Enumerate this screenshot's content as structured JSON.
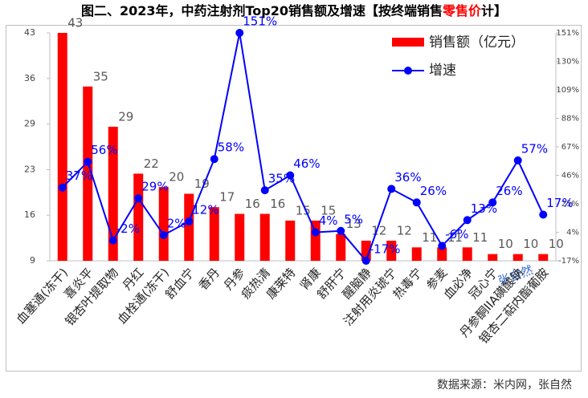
{
  "chart_data": {
    "type": "bar-line",
    "title": [
      "图二、2023年，中药注射剂Top20销售额及增速【按终端销售",
      "零售价",
      "计】"
    ],
    "categories": [
      "血塞通(冻干)",
      "喜炎平",
      "银杏叶提取物",
      "丹红",
      "血栓通(冻干)",
      "舒血宁",
      "香丹",
      "丹参",
      "痰热清",
      "康莱特",
      "肾康",
      "舒肝宁",
      "醒脑静",
      "注射用炎琥宁",
      "热毒宁",
      "参麦",
      "血必净",
      "冠心宁",
      "丹参酮IIA磺酸钠",
      "银杏二萜内酯葡胺"
    ],
    "series": [
      {
        "name": "销售额（亿元）",
        "color": "#ff0000",
        "values": [
          43,
          35,
          29,
          22,
          20,
          19,
          17,
          16,
          16,
          15,
          15,
          13,
          12,
          12,
          11,
          11,
          11,
          10,
          10,
          10
        ]
      },
      {
        "name": "增速",
        "color": "#0000ff",
        "axis": "y2",
        "values": [
          37,
          56,
          -2,
          29,
          2,
          12,
          58,
          151,
          35,
          46,
          4,
          5,
          -17,
          36,
          26,
          -6,
          13,
          26,
          57,
          17
        ],
        "value_labels": [
          "37%",
          "56%",
          "-2%",
          "29%",
          "2%",
          "12%",
          "58%",
          "151%",
          "35%",
          "46%",
          "4%",
          "5%",
          "-17%",
          "36%",
          "26%",
          "-6%",
          "13%",
          "26%",
          "57%",
          "17%"
        ]
      }
    ],
    "ylim": [
      9,
      43
    ],
    "yticks": [
      9,
      {
        "value": 15.8,
        "label": "16"
      },
      {
        "value": 22.6,
        "label": "23"
      },
      {
        "value": 29.4,
        "label": "29"
      },
      {
        "value": 36.2,
        "label": "36"
      },
      43
    ],
    "y2lim": [
      -17,
      151
    ],
    "y2ticks": [
      {
        "value": -17,
        "label": "-17%"
      },
      {
        "value": 4,
        "label": "4%"
      },
      {
        "value": 25,
        "label": "25%"
      },
      {
        "value": 46,
        "label": "46%"
      },
      {
        "value": 67,
        "label": "67%"
      },
      {
        "value": 88,
        "label": "88%"
      },
      {
        "value": 109,
        "label": "109%"
      },
      {
        "value": 130,
        "label": "130%"
      },
      {
        "value": 151,
        "label": "151%"
      }
    ],
    "legend": "top-right",
    "annotations": [
      "张自然"
    ],
    "source": "数据来源：米内网，张自然"
  }
}
